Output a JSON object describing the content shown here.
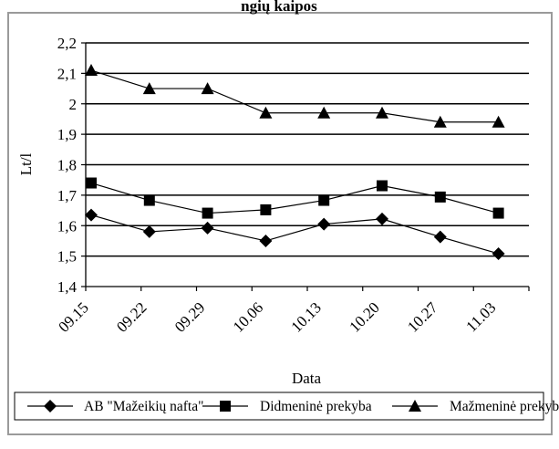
{
  "chart_data": {
    "type": "line",
    "title": "",
    "title_fragment": "ngių kaipos",
    "xlabel": "Data",
    "ylabel": "Lt/l",
    "ylim": [
      1.4,
      2.2
    ],
    "yticks": [
      "1,4",
      "1,5",
      "1,6",
      "1,7",
      "1,8",
      "1,9",
      "2",
      "2,1",
      "2,2"
    ],
    "categories": [
      "09.15",
      "09.22",
      "09.29",
      "10.06",
      "10.13",
      "10.20",
      "10.27",
      "11.03"
    ],
    "grid": "horizontal major gridlines",
    "legend_position": "bottom",
    "series": [
      {
        "name": "AB \"Mažeikių nafta\"",
        "marker": "diamond",
        "values": [
          1.635,
          1.58,
          1.592,
          1.55,
          1.605,
          1.622,
          1.563,
          1.508
        ]
      },
      {
        "name": "Didmeninė prekyba",
        "marker": "square",
        "values": [
          1.74,
          1.683,
          1.641,
          1.652,
          1.683,
          1.731,
          1.694,
          1.641
        ]
      },
      {
        "name": "Mažmeninė prekyba",
        "marker": "triangle",
        "values": [
          2.11,
          2.05,
          2.05,
          1.97,
          1.97,
          1.97,
          1.94,
          1.94
        ]
      }
    ]
  }
}
